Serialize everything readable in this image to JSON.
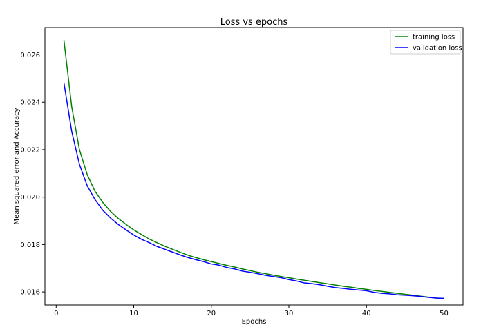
{
  "chart_data": {
    "type": "line",
    "title": "Loss vs epochs",
    "xlabel": "Epochs",
    "ylabel": "Mean squared error and Accuracy",
    "xlim": [
      -1.45,
      52.45
    ],
    "ylim": [
      0.01545,
      0.02715
    ],
    "xticks": [
      0,
      10,
      20,
      30,
      40,
      50
    ],
    "yticks": [
      0.016,
      0.018,
      0.02,
      0.022,
      0.024,
      0.026
    ],
    "xtick_labels": [
      "0",
      "10",
      "20",
      "30",
      "40",
      "50"
    ],
    "ytick_labels": [
      "0.016",
      "0.018",
      "0.020",
      "0.022",
      "0.024",
      "0.026"
    ],
    "grid": false,
    "legend_position": "top-right",
    "x": [
      1,
      2,
      3,
      4,
      5,
      6,
      7,
      8,
      9,
      10,
      11,
      12,
      13,
      14,
      15,
      16,
      17,
      18,
      19,
      20,
      21,
      22,
      23,
      24,
      25,
      26,
      27,
      28,
      29,
      30,
      31,
      32,
      33,
      34,
      35,
      36,
      37,
      38,
      39,
      40,
      41,
      42,
      43,
      44,
      45,
      46,
      47,
      48,
      49,
      50
    ],
    "series": [
      {
        "name": "training loss",
        "color": "#008000",
        "values": [
          0.02662,
          0.02382,
          0.022,
          0.02095,
          0.02025,
          0.01978,
          0.0194,
          0.0191,
          0.01885,
          0.01862,
          0.01842,
          0.01823,
          0.01808,
          0.01793,
          0.0178,
          0.01767,
          0.01755,
          0.01745,
          0.01736,
          0.01728,
          0.0172,
          0.01712,
          0.01705,
          0.01697,
          0.0169,
          0.01683,
          0.01677,
          0.01671,
          0.01665,
          0.0166,
          0.01654,
          0.01649,
          0.01644,
          0.01639,
          0.01634,
          0.01629,
          0.01624,
          0.0162,
          0.01615,
          0.01611,
          0.01606,
          0.01602,
          0.01598,
          0.01594,
          0.0159,
          0.01586,
          0.01582,
          0.01578,
          0.01574,
          0.0157
        ]
      },
      {
        "name": "validation loss",
        "color": "#0000ff",
        "values": [
          0.02482,
          0.02278,
          0.02138,
          0.02048,
          0.0199,
          0.01945,
          0.01912,
          0.01885,
          0.01862,
          0.0184,
          0.01822,
          0.01808,
          0.01792,
          0.0178,
          0.01768,
          0.01756,
          0.01745,
          0.01736,
          0.01728,
          0.01718,
          0.01713,
          0.01703,
          0.01697,
          0.01688,
          0.01683,
          0.01677,
          0.0167,
          0.01665,
          0.0166,
          0.01652,
          0.01646,
          0.01638,
          0.01635,
          0.0163,
          0.01624,
          0.01618,
          0.01615,
          0.01611,
          0.01608,
          0.01605,
          0.01598,
          0.01594,
          0.01592,
          0.01588,
          0.01586,
          0.01584,
          0.01581,
          0.01577,
          0.01574,
          0.01573
        ]
      }
    ]
  }
}
